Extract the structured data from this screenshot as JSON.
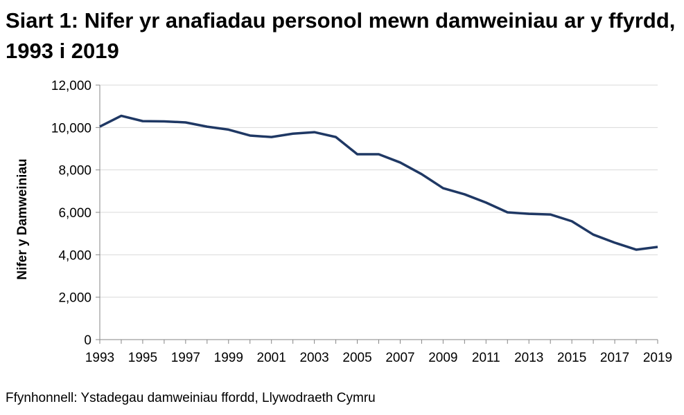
{
  "chart_data": {
    "type": "line",
    "title": "Siart 1: Nifer yr anafiadau personol mewn damweiniau ar y ffyrdd, 1993 i 2019",
    "xlabel": "",
    "ylabel": "Nifer y Damweiniau",
    "x": [
      1993,
      1994,
      1995,
      1996,
      1997,
      1998,
      1999,
      2000,
      2001,
      2002,
      2003,
      2004,
      2005,
      2006,
      2007,
      2008,
      2009,
      2010,
      2011,
      2012,
      2013,
      2014,
      2015,
      2016,
      2017,
      2018,
      2019
    ],
    "series": [
      {
        "values": [
          10040,
          10550,
          10300,
          10290,
          10240,
          10040,
          9900,
          9620,
          9550,
          9710,
          9780,
          9550,
          8740,
          8740,
          8350,
          7800,
          7140,
          6850,
          6460,
          6000,
          5930,
          5900,
          5580,
          4950,
          4570,
          4240,
          4370
        ],
        "color": "#1f3864"
      }
    ],
    "xticks": [
      "1993",
      "1995",
      "1997",
      "1999",
      "2001",
      "2003",
      "2005",
      "2007",
      "2009",
      "2011",
      "2013",
      "2015",
      "2017",
      "2019"
    ],
    "yticks": [
      "0",
      "2,000",
      "4,000",
      "6,000",
      "8,000",
      "10,000",
      "12,000"
    ],
    "ylim": [
      0,
      12000
    ],
    "xlim": [
      1993,
      2019
    ],
    "grid": "horizontal",
    "legend": "none"
  },
  "source": "Ffynhonnell: Ystadegau damweiniau ffordd, Llywodraeth Cymru"
}
